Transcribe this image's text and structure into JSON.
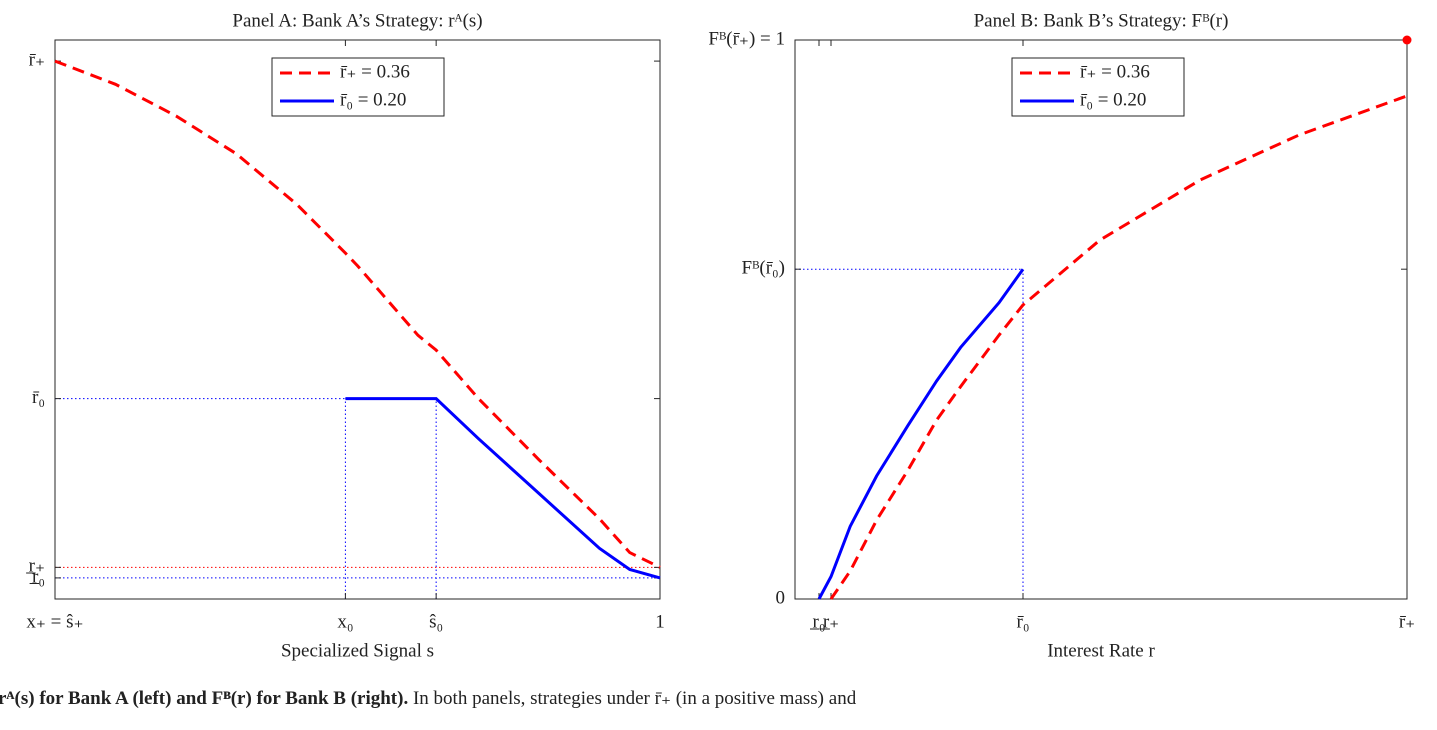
{
  "chart_data": [
    {
      "type": "line",
      "title": "Panel A: Bank A’s Strategy: rᴬ(s)",
      "x_label": "Specialized Signal s",
      "x": [
        0,
        0.1,
        0.2,
        0.3,
        0.4,
        0.48,
        0.5,
        0.6,
        0.63,
        0.7,
        0.8,
        0.9,
        0.95,
        1
      ],
      "series": [
        {
          "name": "r̄₊ = 0.36",
          "color": "#ff0000",
          "line_style": "dashed",
          "values": [
            0.36,
            0.349,
            0.334,
            0.316,
            0.292,
            0.269,
            0.263,
            0.23,
            0.223,
            0.2,
            0.171,
            0.143,
            0.127,
            0.12
          ]
        },
        {
          "name": "r̄₀ = 0.20",
          "color": "#0000ff",
          "line_style": "solid",
          "values": [
            null,
            null,
            null,
            null,
            null,
            0.2,
            0.2,
            0.2,
            0.2,
            0.181,
            0.155,
            0.129,
            0.119,
            0.115
          ]
        }
      ],
      "xlim": [
        0,
        1
      ],
      "ylim": [
        0.105,
        0.37
      ],
      "xticks": [
        {
          "value": 0,
          "label": "x₊ = ŝ₊"
        },
        {
          "value": 0.48,
          "label": "x₀"
        },
        {
          "value": 0.63,
          "label": "ŝ₀"
        },
        1
      ],
      "yticks": [
        {
          "value": 0.115,
          "label": "r̲₀"
        },
        {
          "value": 0.12,
          "label": "r̲₊"
        },
        {
          "value": 0.2,
          "label": "r̄₀"
        },
        {
          "value": 0.36,
          "label": "r̄₊"
        }
      ],
      "legend": "top-center"
    },
    {
      "type": "line",
      "title": "Panel B: Bank B’s Strategy: Fᴮ(r)",
      "x_label": "Interest Rate r",
      "x": [
        0.115,
        0.12,
        0.128,
        0.139,
        0.152,
        0.164,
        0.174,
        0.19,
        0.2,
        0.232,
        0.274,
        0.315,
        0.36
      ],
      "series": [
        {
          "name": "r̄₊ = 0.36",
          "color": "#ff0000",
          "line_style": "dashed",
          "values": [
            null,
            0,
            0.05,
            0.141,
            0.23,
            0.32,
            0.38,
            0.472,
            0.526,
            0.642,
            0.75,
            0.83,
            0.9
          ]
        },
        {
          "name": "r̄₀ = 0.20",
          "color": "#0000ff",
          "line_style": "solid",
          "values": [
            0,
            0.04,
            0.13,
            0.22,
            0.31,
            0.39,
            0.45,
            0.53,
            0.59,
            null,
            null,
            null,
            null
          ]
        }
      ],
      "end_marker": {
        "x": 0.36,
        "y": 1,
        "color": "#ff0000"
      },
      "xlim": [
        0.105,
        0.36
      ],
      "ylim": [
        0,
        1
      ],
      "xticks": [
        {
          "value": 0.115,
          "label": "r̲₀"
        },
        {
          "value": 0.12,
          "label": "r̲₊"
        },
        {
          "value": 0.2,
          "label": "r̄₀"
        },
        {
          "value": 0.36,
          "label": "r̄₊"
        }
      ],
      "yticks": [
        0,
        {
          "value": 0.59,
          "label": "Fᴮ(r̄₀)"
        },
        {
          "value": 1,
          "label": "Fᴮ(r̄₊) = 1"
        }
      ],
      "legend": "top-center"
    }
  ],
  "caption": {
    "bold": "rᴬ(s) for Bank A (left) and Fᴮ(r) for Bank B (right).",
    "text": "In both panels, strategies under r̄₊ (in a positive mass) and"
  }
}
